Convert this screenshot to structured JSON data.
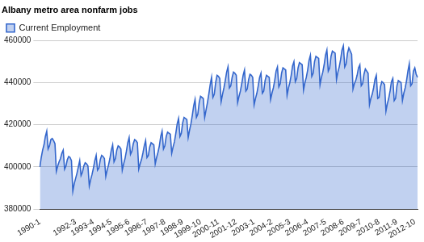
{
  "chart_data": {
    "type": "area",
    "title": "Albany metro area nonfarm jobs",
    "categories": [
      "1990-1",
      null,
      null,
      null,
      null,
      null,
      null,
      null,
      null,
      null,
      null,
      null,
      null,
      null,
      null,
      null,
      null,
      null,
      null,
      null,
      null,
      null,
      null,
      null,
      null,
      null,
      "1992-3",
      null,
      null,
      null,
      null,
      null,
      null,
      null,
      null,
      null,
      null,
      null,
      null,
      "1993-4",
      null,
      null,
      null,
      null,
      null,
      null,
      null,
      null,
      null,
      null,
      null,
      null,
      "1994-5",
      null,
      null,
      null,
      null,
      null,
      null,
      null,
      null,
      null,
      null,
      null,
      null,
      "1995-6",
      null,
      null,
      null,
      null,
      null,
      null,
      null,
      null,
      null,
      null,
      null,
      null,
      "1996-7",
      null,
      null,
      null,
      null,
      null,
      null,
      null,
      null,
      null,
      null,
      null,
      null,
      "1997-8",
      null,
      null,
      null,
      null,
      null,
      null,
      null,
      null,
      null,
      null,
      null,
      null,
      "1998-9",
      null,
      null,
      null,
      null,
      null,
      null,
      null,
      null,
      null,
      null,
      null,
      null,
      "1999-10",
      null,
      null,
      null,
      null,
      null,
      null,
      null,
      null,
      null,
      null,
      null,
      null,
      "2000-11",
      null,
      null,
      null,
      null,
      null,
      null,
      null,
      null,
      null,
      null,
      null,
      null,
      "2001-12",
      null,
      null,
      null,
      null,
      null,
      null,
      null,
      null,
      null,
      null,
      null,
      null,
      "2003-1",
      null,
      null,
      null,
      null,
      null,
      null,
      null,
      null,
      null,
      null,
      null,
      null,
      "2004-2",
      null,
      null,
      null,
      null,
      null,
      null,
      null,
      null,
      null,
      null,
      null,
      null,
      "2005-3",
      null,
      null,
      null,
      null,
      null,
      null,
      null,
      null,
      null,
      null,
      null,
      null,
      "2006-4",
      null,
      null,
      null,
      null,
      null,
      null,
      null,
      null,
      null,
      null,
      null,
      null,
      "2007-5",
      null,
      null,
      null,
      null,
      null,
      null,
      null,
      null,
      null,
      null,
      null,
      null,
      "2008-6",
      null,
      null,
      null,
      null,
      null,
      null,
      null,
      null,
      null,
      null,
      null,
      null,
      "2009-7",
      null,
      null,
      null,
      null,
      null,
      null,
      null,
      null,
      null,
      null,
      null,
      null,
      "2010-8",
      null,
      null,
      null,
      null,
      null,
      null,
      null,
      null,
      null,
      null,
      null,
      null,
      "2011-9",
      null,
      null,
      null,
      null,
      null,
      null,
      null,
      null,
      null,
      null,
      null,
      null,
      "2012-10",
      null,
      null
    ],
    "series": [
      {
        "name": "Current Employment",
        "color": "#3366cc",
        "values": [
          400000,
          404500,
          408000,
          410500,
          414500,
          417000,
          408500,
          410000,
          413000,
          413500,
          412500,
          411000,
          398000,
          400500,
          402500,
          404000,
          406500,
          408000,
          399000,
          400500,
          403500,
          405000,
          404500,
          403000,
          388500,
          392000,
          394500,
          397000,
          400000,
          403000,
          396000,
          397500,
          400500,
          402000,
          401500,
          400500,
          391000,
          394000,
          396500,
          399500,
          403000,
          405500,
          398500,
          399500,
          403500,
          405500,
          405000,
          404000,
          395500,
          398500,
          401000,
          404000,
          408000,
          410500,
          402500,
          404000,
          408000,
          410000,
          409500,
          408500,
          398500,
          401500,
          404000,
          407500,
          411500,
          414000,
          406000,
          407500,
          411000,
          413000,
          412500,
          411500,
          399000,
          401500,
          403500,
          406500,
          410000,
          412500,
          404500,
          405500,
          409500,
          411500,
          411000,
          410500,
          401500,
          404500,
          407000,
          410000,
          414500,
          417000,
          408500,
          410000,
          414500,
          416500,
          416000,
          415500,
          406500,
          409500,
          412000,
          416000,
          420500,
          423000,
          414500,
          416000,
          421000,
          423500,
          423000,
          422500,
          414000,
          417500,
          420500,
          424500,
          429000,
          432000,
          423500,
          425000,
          430500,
          433500,
          433000,
          432500,
          423500,
          427000,
          430500,
          434500,
          439000,
          442500,
          433000,
          434500,
          440000,
          443500,
          443000,
          442000,
          431000,
          434500,
          437500,
          441000,
          445000,
          447500,
          437500,
          438500,
          442500,
          445000,
          444500,
          443500,
          430500,
          433500,
          436000,
          439500,
          443500,
          446000,
          436000,
          437000,
          441500,
          444000,
          443500,
          442500,
          429500,
          432500,
          435000,
          438500,
          442500,
          444500,
          435000,
          436000,
          441000,
          443500,
          443000,
          442500,
          432000,
          435000,
          437500,
          441000,
          445500,
          447500,
          438000,
          439500,
          444500,
          447000,
          446500,
          446000,
          434000,
          437500,
          440000,
          443500,
          448000,
          450000,
          440500,
          442000,
          447000,
          449500,
          449000,
          448500,
          436500,
          440000,
          442500,
          446000,
          450500,
          453000,
          443000,
          444500,
          450000,
          452500,
          452000,
          451500,
          439000,
          442500,
          445000,
          448500,
          453000,
          455500,
          445500,
          447000,
          452500,
          455000,
          454500,
          454000,
          441500,
          445000,
          447500,
          451000,
          455500,
          457500,
          447500,
          449000,
          454000,
          456500,
          455000,
          453500,
          437000,
          439500,
          441000,
          443500,
          447000,
          448500,
          438500,
          439500,
          444000,
          446500,
          445500,
          444500,
          429500,
          432500,
          434500,
          437500,
          441500,
          443500,
          432500,
          433000,
          438000,
          440500,
          440000,
          439000,
          426500,
          430000,
          432500,
          436000,
          440500,
          442000,
          431500,
          432500,
          438500,
          441000,
          440500,
          440000,
          431500,
          435000,
          437500,
          441000,
          445500,
          449000,
          438500,
          439500,
          445500,
          447000,
          444000,
          442500
        ]
      }
    ],
    "ylim": [
      380000,
      460000
    ],
    "yticks": [
      380000,
      400000,
      420000,
      440000,
      460000
    ],
    "grid": true,
    "legend": "top"
  }
}
